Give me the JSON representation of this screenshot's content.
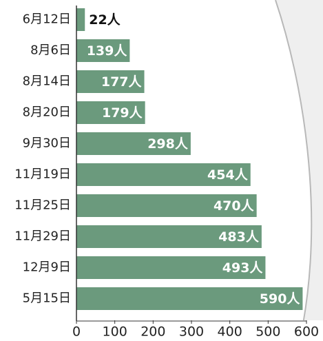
{
  "chart_data": {
    "type": "bar",
    "orientation": "horizontal",
    "categories": [
      "6月12日",
      "8月6日",
      "8月14日",
      "8月20日",
      "9月30日",
      "11月19日",
      "11月25日",
      "11月29日",
      "12月9日",
      "5月15日"
    ],
    "values": [
      22,
      139,
      177,
      179,
      298,
      454,
      470,
      483,
      493,
      590
    ],
    "value_labels": [
      "22人",
      "139人",
      "177人",
      "179人",
      "298人",
      "454人",
      "470人",
      "483人",
      "493人",
      "590人"
    ],
    "color": "#6b9a7d",
    "xlim": [
      0,
      600
    ],
    "xticks": [
      0,
      100,
      200,
      300,
      400,
      500,
      600
    ]
  }
}
